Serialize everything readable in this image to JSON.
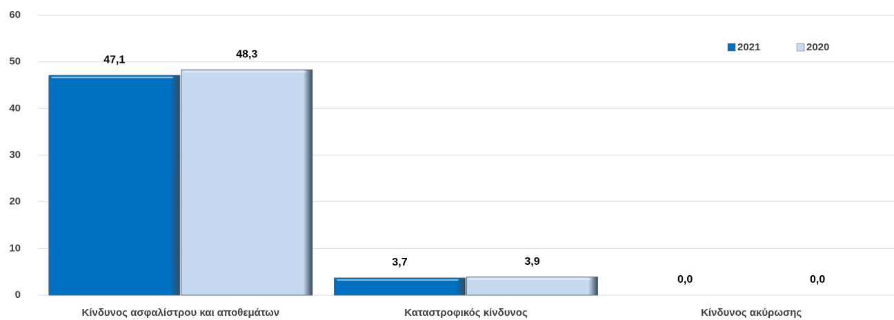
{
  "chart_data": {
    "type": "bar",
    "categories": [
      "Κίνδυνος ασφαλίστρου και αποθεμάτων",
      "Καταστροφικός κίνδυνος",
      "Κίνδυνος ακύρωσης"
    ],
    "series": [
      {
        "name": "2021",
        "color": "#0070c0",
        "values": [
          47.1,
          3.7,
          0.0
        ],
        "value_labels": [
          "47,1",
          "3,7",
          "0,0"
        ]
      },
      {
        "name": "2020",
        "color": "#c5d9f1",
        "values": [
          48.3,
          3.9,
          0.0
        ],
        "value_labels": [
          "48,3",
          "3,9",
          "0,0"
        ]
      }
    ],
    "ylim": [
      0,
      60
    ],
    "yticks": [
      0,
      10,
      20,
      30,
      40,
      50,
      60
    ],
    "grid": true,
    "legend": "top-right"
  }
}
